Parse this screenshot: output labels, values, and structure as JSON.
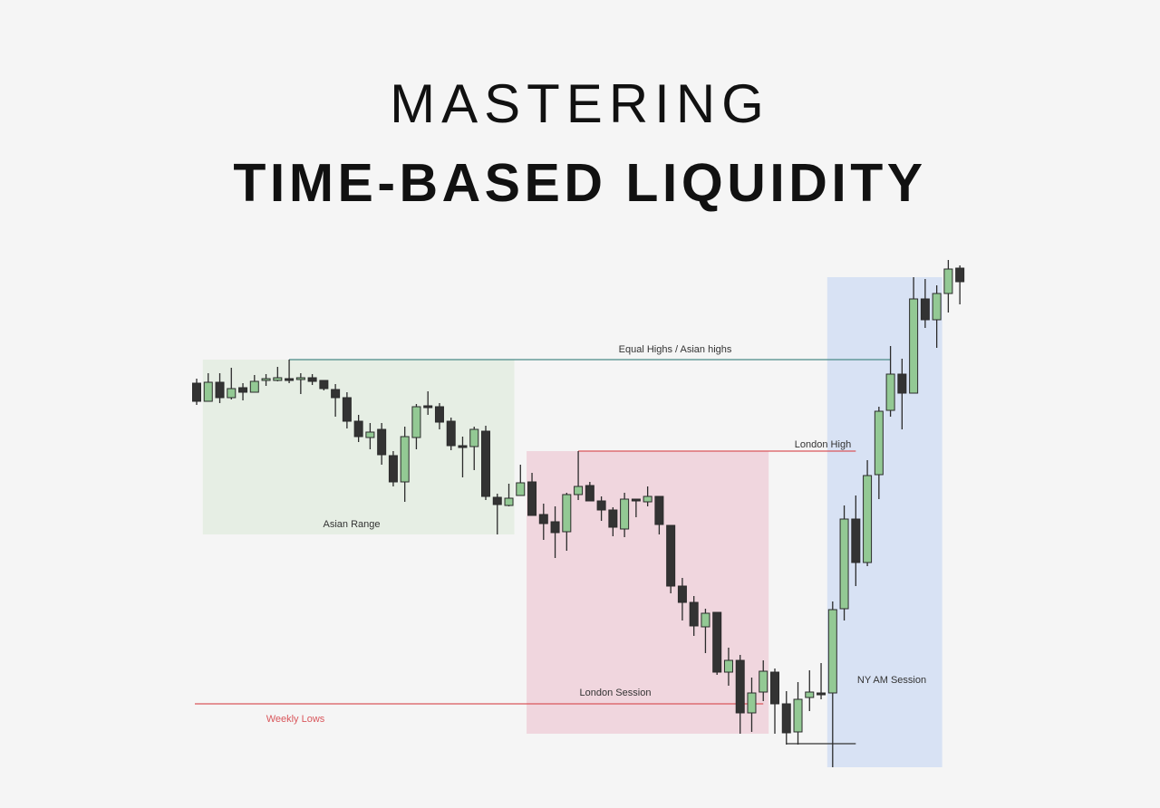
{
  "title": {
    "line1": "MASTERING",
    "line2": "TIME-BASED LIQUIDITY"
  },
  "chart_data": {
    "type": "candlestick",
    "title": "MASTERING TIME-BASED LIQUIDITY",
    "axes_visible": false,
    "grid": false,
    "colors": {
      "bullish": "#93c994",
      "bearish": "#333333",
      "outline": "#2b2b2b",
      "background": "#f5f5f5"
    },
    "candles": [
      [
        477,
        482,
        453,
        457
      ],
      [
        457,
        488,
        457,
        478
      ],
      [
        478,
        488,
        455,
        461
      ],
      [
        461,
        494,
        459,
        471
      ],
      [
        472,
        477,
        458,
        467
      ],
      [
        467,
        486,
        467,
        479
      ],
      [
        481,
        487,
        474,
        482
      ],
      [
        480,
        495,
        479,
        483
      ],
      [
        482,
        503,
        477,
        481
      ],
      [
        481,
        488,
        465,
        483
      ],
      [
        483,
        487,
        475,
        479
      ],
      [
        480,
        480,
        469,
        471
      ],
      [
        470,
        476,
        440,
        461
      ],
      [
        461,
        467,
        427,
        435
      ],
      [
        435,
        442,
        412,
        418
      ],
      [
        417,
        433,
        404,
        423
      ],
      [
        426,
        433,
        387,
        398
      ],
      [
        397,
        402,
        363,
        368
      ],
      [
        368,
        429,
        346,
        418
      ],
      [
        417,
        454,
        404,
        451
      ],
      [
        452,
        468,
        442,
        452
      ],
      [
        451,
        455,
        426,
        434
      ],
      [
        435,
        439,
        403,
        408
      ],
      [
        408,
        418,
        373,
        408
      ],
      [
        407,
        429,
        381,
        426
      ],
      [
        424,
        430,
        348,
        352
      ],
      [
        351,
        355,
        310,
        343
      ],
      [
        342,
        366,
        341,
        350
      ],
      [
        353,
        387,
        353,
        367
      ],
      [
        368,
        378,
        331,
        331
      ],
      [
        332,
        344,
        304,
        322
      ],
      [
        324,
        341,
        284,
        312
      ],
      [
        313,
        356,
        292,
        354
      ],
      [
        354,
        402,
        348,
        363
      ],
      [
        364,
        368,
        347,
        347
      ],
      [
        347,
        352,
        325,
        337
      ],
      [
        337,
        340,
        308,
        318
      ],
      [
        316,
        356,
        307,
        349
      ],
      [
        349,
        349,
        329,
        347
      ],
      [
        346,
        363,
        341,
        352
      ],
      [
        352,
        352,
        310,
        321
      ],
      [
        320,
        320,
        245,
        253
      ],
      [
        253,
        262,
        215,
        235
      ],
      [
        235,
        242,
        198,
        209
      ],
      [
        208,
        228,
        179,
        223
      ],
      [
        224,
        224,
        155,
        158
      ],
      [
        158,
        185,
        143,
        171
      ],
      [
        171,
        177,
        90,
        113
      ],
      [
        113,
        152,
        92,
        135
      ],
      [
        136,
        171,
        126,
        159
      ],
      [
        158,
        162,
        90,
        123
      ],
      [
        123,
        137,
        78,
        91
      ],
      [
        92,
        147,
        78,
        128
      ],
      [
        130,
        160,
        115,
        136
      ],
      [
        135,
        168,
        128,
        135
      ],
      [
        135,
        236,
        53,
        227
      ],
      [
        228,
        342,
        215,
        327
      ],
      [
        327,
        353,
        253,
        279
      ],
      [
        279,
        392,
        275,
        375
      ],
      [
        376,
        451,
        349,
        446
      ],
      [
        447,
        518,
        440,
        487
      ],
      [
        487,
        504,
        426,
        466
      ],
      [
        466,
        594,
        466,
        570
      ],
      [
        570,
        592,
        538,
        547
      ],
      [
        547,
        585,
        516,
        576
      ],
      [
        576,
        613,
        555,
        603
      ],
      [
        604,
        607,
        564,
        589
      ]
    ],
    "candle_format": [
      "open",
      "high",
      "low",
      "close"
    ],
    "sessions": [
      {
        "label": "Asian Range",
        "start_index": 1,
        "end_index": 27,
        "high": 503,
        "low": 310,
        "color": "#e6eee4"
      },
      {
        "label": "London Session",
        "start_index": 29,
        "end_index": 49,
        "high": 402,
        "low": 90,
        "color": "#f0d6de"
      },
      {
        "label": "NY AM Session",
        "start_index": 55,
        "end_index": 64,
        "high": 594,
        "low": 53,
        "color": "#d8e2f4"
      }
    ],
    "levels": [
      {
        "label": "Equal Highs / Asian highs",
        "price": 503,
        "from_index": 8,
        "to_index": 60,
        "color": "#4a8a86"
      },
      {
        "label": "London High",
        "price": 402,
        "from_index": 33,
        "to_index": 57,
        "color": "#d9575c"
      },
      {
        "label": "Weekly Lows",
        "price": 123,
        "from_index": 0,
        "to_index": 49,
        "color": "#d9575c"
      },
      {
        "label": "",
        "price": 79,
        "from_index": 51,
        "to_index": 57,
        "color": "#333333"
      }
    ]
  }
}
